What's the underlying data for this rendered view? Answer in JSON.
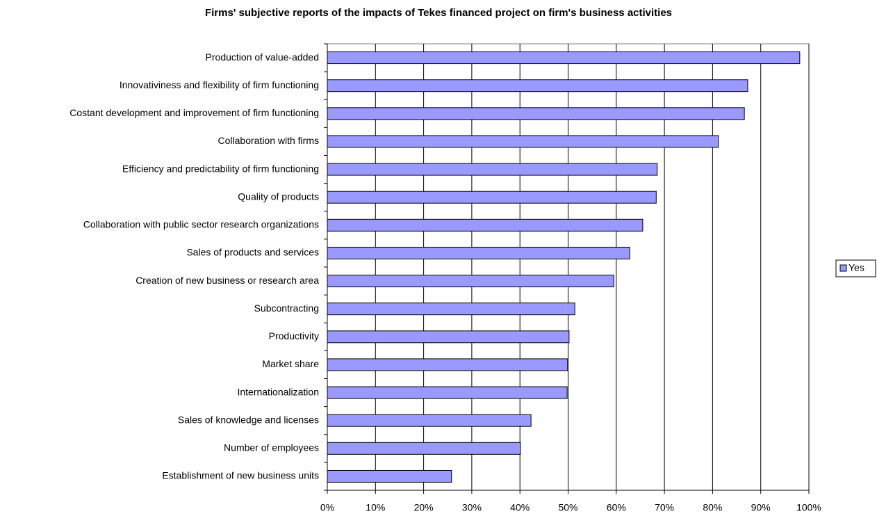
{
  "chart_data": {
    "type": "bar",
    "orientation": "horizontal",
    "title": "Firms' subjective reports of the impacts of Tekes financed project on firm's business activities",
    "categories": [
      "Production of value-added",
      "Innovativiness and flexibility of firm functioning",
      "Costant development and improvement of firm functioning",
      "Collaboration with firms",
      "Efficiency and predictability of firm functioning",
      "Quality of products",
      "Collaboration with public sector research organizations",
      "Sales of products and services",
      "Creation of new business or research area",
      "Subcontracting",
      "Productivity",
      "Market share",
      "Internationalization",
      "Sales of knowledge and licenses",
      "Number of employees",
      "Establishment of new business units"
    ],
    "series": [
      {
        "name": "Yes",
        "color": "#9999ff",
        "values": [
          98.1,
          87.3,
          86.6,
          81.2,
          68.5,
          68.3,
          65.5,
          62.8,
          59.5,
          51.4,
          50.2,
          49.9,
          49.8,
          42.3,
          40.1,
          25.8
        ]
      }
    ],
    "xlim": [
      0,
      100
    ],
    "xticks": [
      {
        "value": 0,
        "label": "0%"
      },
      {
        "value": 10,
        "label": "10%"
      },
      {
        "value": 20,
        "label": "20%"
      },
      {
        "value": 30,
        "label": "30%"
      },
      {
        "value": 40,
        "label": "40%"
      },
      {
        "value": 50,
        "label": "50%"
      },
      {
        "value": 60,
        "label": "60%"
      },
      {
        "value": 70,
        "label": "70%"
      },
      {
        "value": 80,
        "label": "80%"
      },
      {
        "value": 90,
        "label": "90%"
      },
      {
        "value": 100,
        "label": "100%"
      }
    ],
    "grid": true,
    "legend": "right"
  }
}
